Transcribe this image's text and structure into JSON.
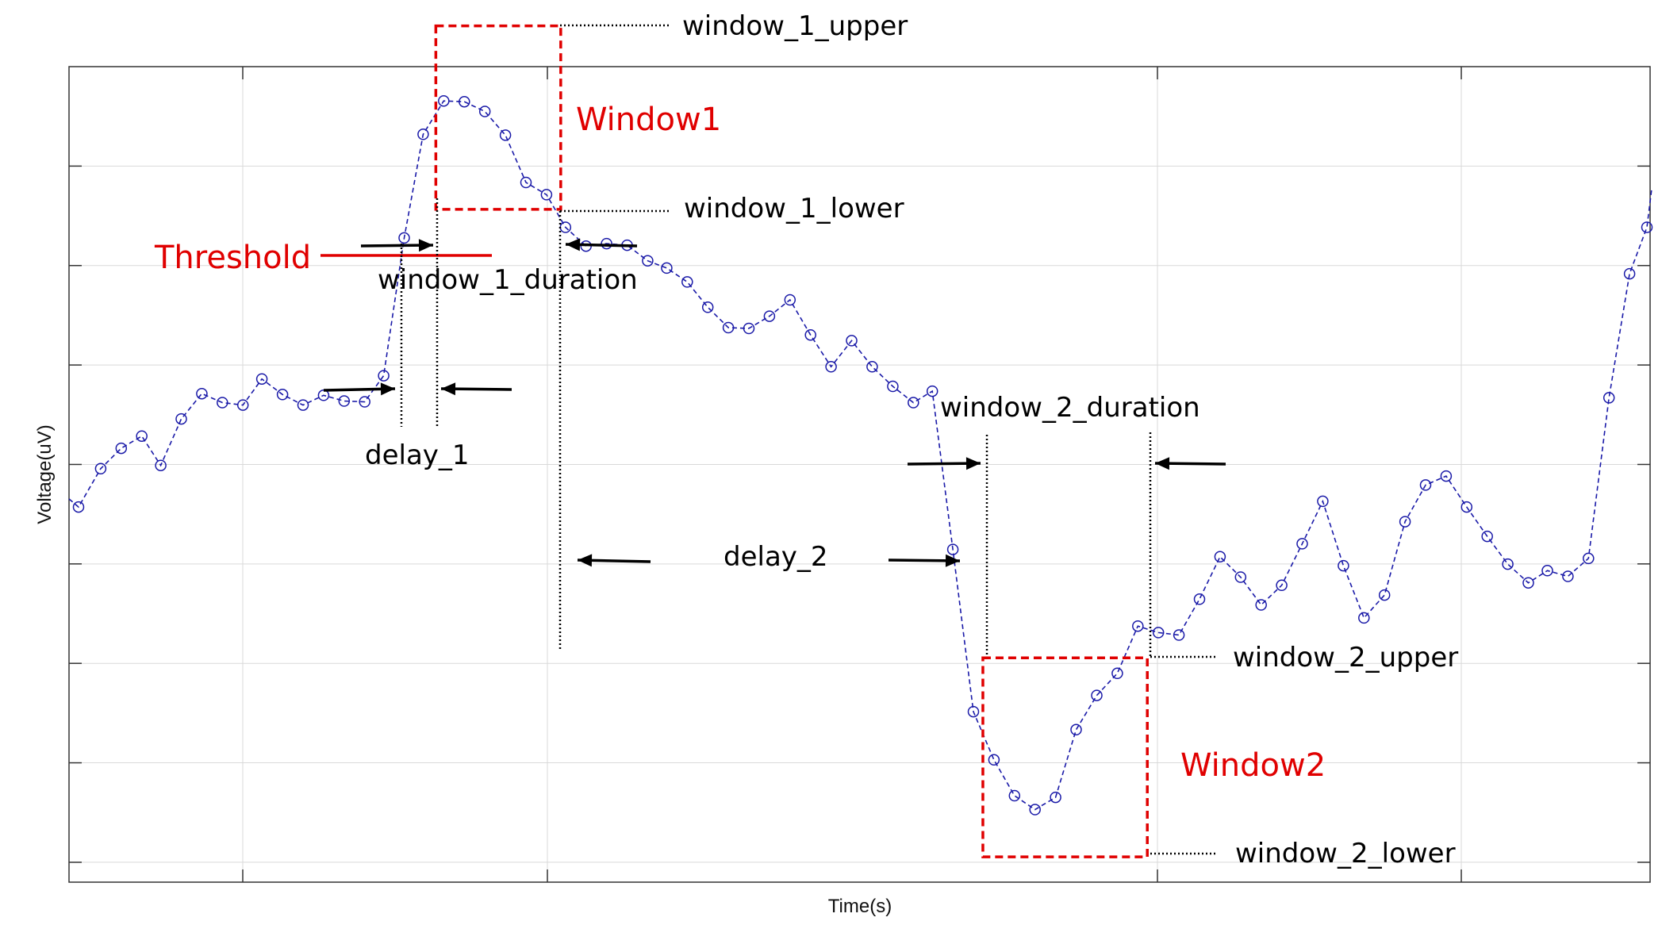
{
  "chart_data": {
    "type": "line",
    "xlabel": "Time(s)",
    "ylabel": "Voltage(uV)",
    "xlim": [
      0,
      1
    ],
    "ylim": [
      0,
      1
    ],
    "grid": true,
    "series": [
      {
        "style": "dashed line with circle markers",
        "color": "#1a1aa8",
        "x": [
          0.006,
          0.02,
          0.033,
          0.046,
          0.058,
          0.071,
          0.084,
          0.097,
          0.11,
          0.122,
          0.135,
          0.148,
          0.161,
          0.174,
          0.187,
          0.199,
          0.212,
          0.224,
          0.237,
          0.25,
          0.263,
          0.276,
          0.289,
          0.302,
          0.314,
          0.327,
          0.34,
          0.353,
          0.366,
          0.378,
          0.391,
          0.404,
          0.417,
          0.43,
          0.443,
          0.456,
          0.469,
          0.482,
          0.495,
          0.508,
          0.521,
          0.534,
          0.546,
          0.559,
          0.572,
          0.585,
          0.598,
          0.611,
          0.624,
          0.637,
          0.65,
          0.663,
          0.676,
          0.689,
          0.702,
          0.715,
          0.728,
          0.741,
          0.754,
          0.767,
          0.78,
          0.793,
          0.806,
          0.819,
          0.832,
          0.845,
          0.858,
          0.871,
          0.884,
          0.897,
          0.91,
          0.923,
          0.935,
          0.948,
          0.961,
          0.974,
          0.987,
          0.998
        ],
        "y": [
          0.46,
          0.507,
          0.532,
          0.547,
          0.511,
          0.568,
          0.599,
          0.588,
          0.585,
          0.617,
          0.598,
          0.585,
          0.597,
          0.59,
          0.589,
          0.621,
          0.79,
          0.917,
          0.958,
          0.957,
          0.945,
          0.916,
          0.858,
          0.843,
          0.803,
          0.78,
          0.783,
          0.781,
          0.762,
          0.753,
          0.736,
          0.705,
          0.68,
          0.679,
          0.694,
          0.714,
          0.671,
          0.632,
          0.664,
          0.632,
          0.608,
          0.588,
          0.602,
          0.408,
          0.209,
          0.15,
          0.106,
          0.089,
          0.104,
          0.187,
          0.229,
          0.256,
          0.314,
          0.306,
          0.303,
          0.347,
          0.399,
          0.374,
          0.34,
          0.364,
          0.415,
          0.467,
          0.388,
          0.324,
          0.352,
          0.442,
          0.487,
          0.498,
          0.46,
          0.424,
          0.39,
          0.367,
          0.382,
          0.375,
          0.397,
          0.594,
          0.746,
          0.803
        ]
      }
    ],
    "annotations": {
      "threshold_label": "Threshold",
      "window1_label": "Window1",
      "window2_label": "Window2",
      "window_1_upper": "window_1_upper",
      "window_1_lower": "window_1_lower",
      "window_1_duration": "window_1_duration",
      "delay_1": "delay_1",
      "delay_2": "delay_2",
      "window_2_duration": "window_2_duration",
      "window_2_upper": "window_2_upper",
      "window_2_lower": "window_2_lower",
      "threshold_y": 0.77,
      "window1": {
        "x": [
          0.232,
          0.311
        ],
        "y": [
          0.825,
          1.05
        ]
      },
      "window2": {
        "x": [
          0.578,
          0.682
        ],
        "y": [
          0.031,
          0.275
        ]
      },
      "delay_1_x": [
        0.209,
        0.232
      ],
      "delay_2_x": [
        0.311,
        0.578
      ],
      "colors": {
        "annotation": "#e00000",
        "text": "#000000"
      }
    }
  }
}
